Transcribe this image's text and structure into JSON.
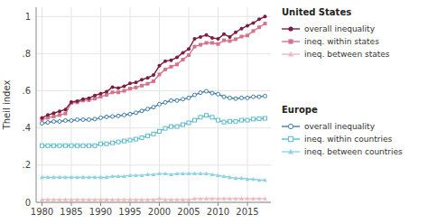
{
  "chart_data": {
    "type": "line",
    "x": [
      1980,
      1981,
      1982,
      1983,
      1984,
      1985,
      1986,
      1987,
      1988,
      1989,
      1990,
      1991,
      1992,
      1993,
      1994,
      1995,
      1996,
      1997,
      1998,
      1999,
      2000,
      2001,
      2002,
      2003,
      2004,
      2005,
      2006,
      2007,
      2008,
      2009,
      2010,
      2011,
      2012,
      2013,
      2014,
      2015,
      2016,
      2017,
      2018
    ],
    "series": [
      {
        "name": "overall inequality",
        "group": "United States",
        "color": "#7B1C40",
        "marker": "circle",
        "values": [
          0.455,
          0.47,
          0.48,
          0.49,
          0.5,
          0.54,
          0.545,
          0.555,
          0.56,
          0.575,
          0.585,
          0.595,
          0.62,
          0.615,
          0.625,
          0.64,
          0.645,
          0.66,
          0.67,
          0.685,
          0.735,
          0.76,
          0.765,
          0.78,
          0.805,
          0.825,
          0.88,
          0.89,
          0.9,
          0.885,
          0.88,
          0.905,
          0.89,
          0.915,
          0.935,
          0.95,
          0.965,
          0.985,
          1.0
        ]
      },
      {
        "name": "ineq. within states",
        "group": "United States",
        "color": "#D4748A",
        "marker": "square",
        "values": [
          0.445,
          0.455,
          0.462,
          0.47,
          0.478,
          0.535,
          0.538,
          0.548,
          0.55,
          0.558,
          0.568,
          0.578,
          0.592,
          0.592,
          0.6,
          0.612,
          0.618,
          0.628,
          0.638,
          0.652,
          0.688,
          0.715,
          0.73,
          0.742,
          0.768,
          0.792,
          0.838,
          0.848,
          0.858,
          0.858,
          0.852,
          0.872,
          0.868,
          0.878,
          0.892,
          0.898,
          0.922,
          0.942,
          0.962
        ]
      },
      {
        "name": "ineq. between states",
        "group": "United States",
        "color": "#EDB8C0",
        "marker": "triangle",
        "values": [
          0.015,
          0.015,
          0.015,
          0.015,
          0.015,
          0.015,
          0.015,
          0.015,
          0.015,
          0.015,
          0.015,
          0.015,
          0.015,
          0.015,
          0.015,
          0.015,
          0.015,
          0.015,
          0.015,
          0.015,
          0.02,
          0.015,
          0.015,
          0.015,
          0.015,
          0.015,
          0.02,
          0.02,
          0.02,
          0.02,
          0.02,
          0.02,
          0.02,
          0.02,
          0.02,
          0.02,
          0.02,
          0.02,
          0.02
        ]
      },
      {
        "name": "overall inequality",
        "group": "Europe",
        "color": "#3D7DA8",
        "marker": "circle-open",
        "values": [
          0.425,
          0.43,
          0.435,
          0.435,
          0.44,
          0.44,
          0.445,
          0.445,
          0.445,
          0.448,
          0.455,
          0.46,
          0.462,
          0.465,
          0.47,
          0.475,
          0.482,
          0.492,
          0.502,
          0.512,
          0.528,
          0.538,
          0.548,
          0.548,
          0.555,
          0.562,
          0.578,
          0.59,
          0.598,
          0.588,
          0.582,
          0.568,
          0.562,
          0.558,
          0.562,
          0.562,
          0.568,
          0.568,
          0.572
        ]
      },
      {
        "name": "ineq. within countries",
        "group": "Europe",
        "color": "#5BBCCE",
        "marker": "square-open",
        "values": [
          0.305,
          0.305,
          0.305,
          0.305,
          0.305,
          0.305,
          0.305,
          0.305,
          0.305,
          0.305,
          0.315,
          0.315,
          0.32,
          0.325,
          0.33,
          0.335,
          0.34,
          0.348,
          0.358,
          0.368,
          0.382,
          0.398,
          0.408,
          0.408,
          0.418,
          0.428,
          0.442,
          0.458,
          0.468,
          0.458,
          0.442,
          0.432,
          0.436,
          0.436,
          0.442,
          0.442,
          0.448,
          0.45,
          0.452
        ]
      },
      {
        "name": "ineq. between countries",
        "group": "Europe",
        "color": "#90D4E0",
        "marker": "triangle",
        "values": [
          0.135,
          0.135,
          0.135,
          0.135,
          0.135,
          0.135,
          0.135,
          0.135,
          0.135,
          0.135,
          0.135,
          0.135,
          0.14,
          0.14,
          0.14,
          0.145,
          0.145,
          0.145,
          0.15,
          0.15,
          0.155,
          0.155,
          0.15,
          0.155,
          0.155,
          0.155,
          0.155,
          0.155,
          0.155,
          0.15,
          0.145,
          0.14,
          0.135,
          0.13,
          0.13,
          0.125,
          0.125,
          0.12,
          0.12
        ]
      }
    ],
    "y_label": "Theil index",
    "xlim": [
      1979,
      2019
    ],
    "ylim": [
      0,
      1.05
    ],
    "xticks": [
      1980,
      1985,
      1990,
      1995,
      2000,
      2005,
      2010,
      2015
    ],
    "yticks": [
      0,
      {
        "value": 0.2,
        "label": ".2"
      },
      {
        "value": 0.4,
        "label": ".4"
      },
      {
        "value": 0.6,
        "label": ".6"
      },
      {
        "value": 0.8,
        "label": ".8"
      },
      1
    ],
    "grid": true
  }
}
